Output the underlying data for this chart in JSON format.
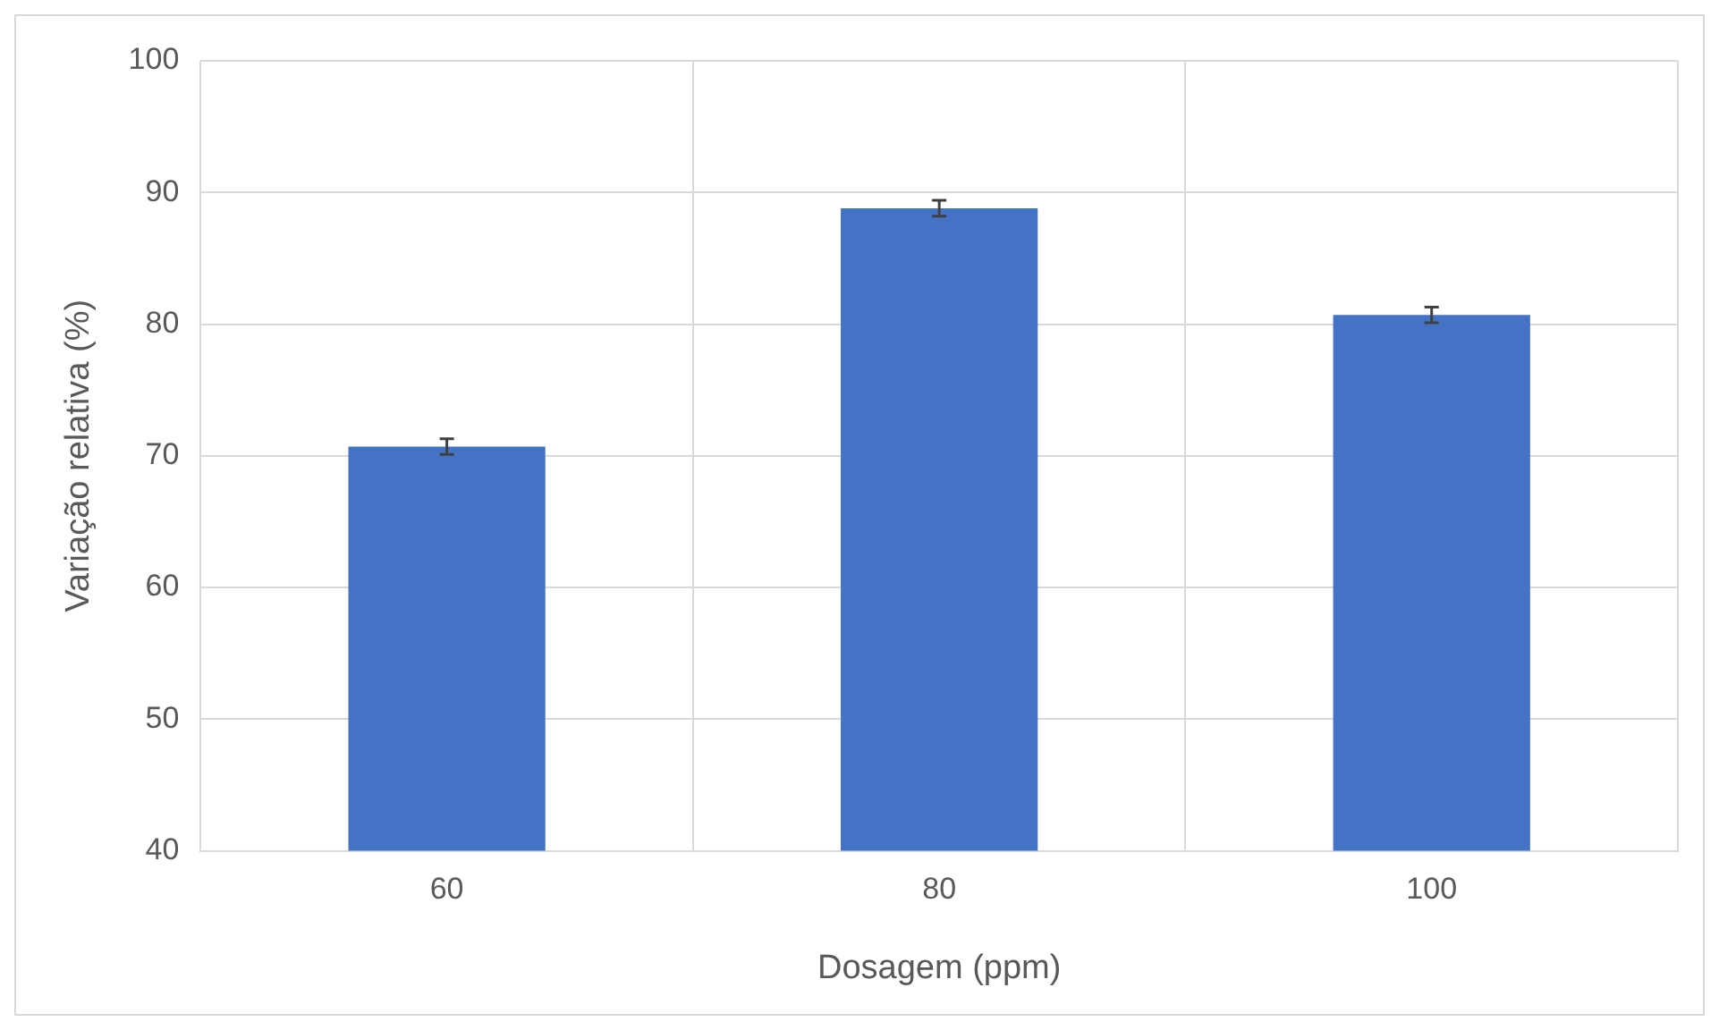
{
  "chart_data": {
    "type": "bar",
    "xlabel": "Dosagem (ppm)",
    "ylabel": "Variação relativa (%)",
    "categories": [
      "60",
      "80",
      "100"
    ],
    "values": [
      70.7,
      88.8,
      80.7
    ],
    "errors": [
      0.6,
      0.6,
      0.6
    ],
    "color": "#4472c4",
    "ylim": [
      40,
      100
    ],
    "yticks": [
      40,
      50,
      60,
      70,
      80,
      90,
      100
    ],
    "grid": true
  }
}
